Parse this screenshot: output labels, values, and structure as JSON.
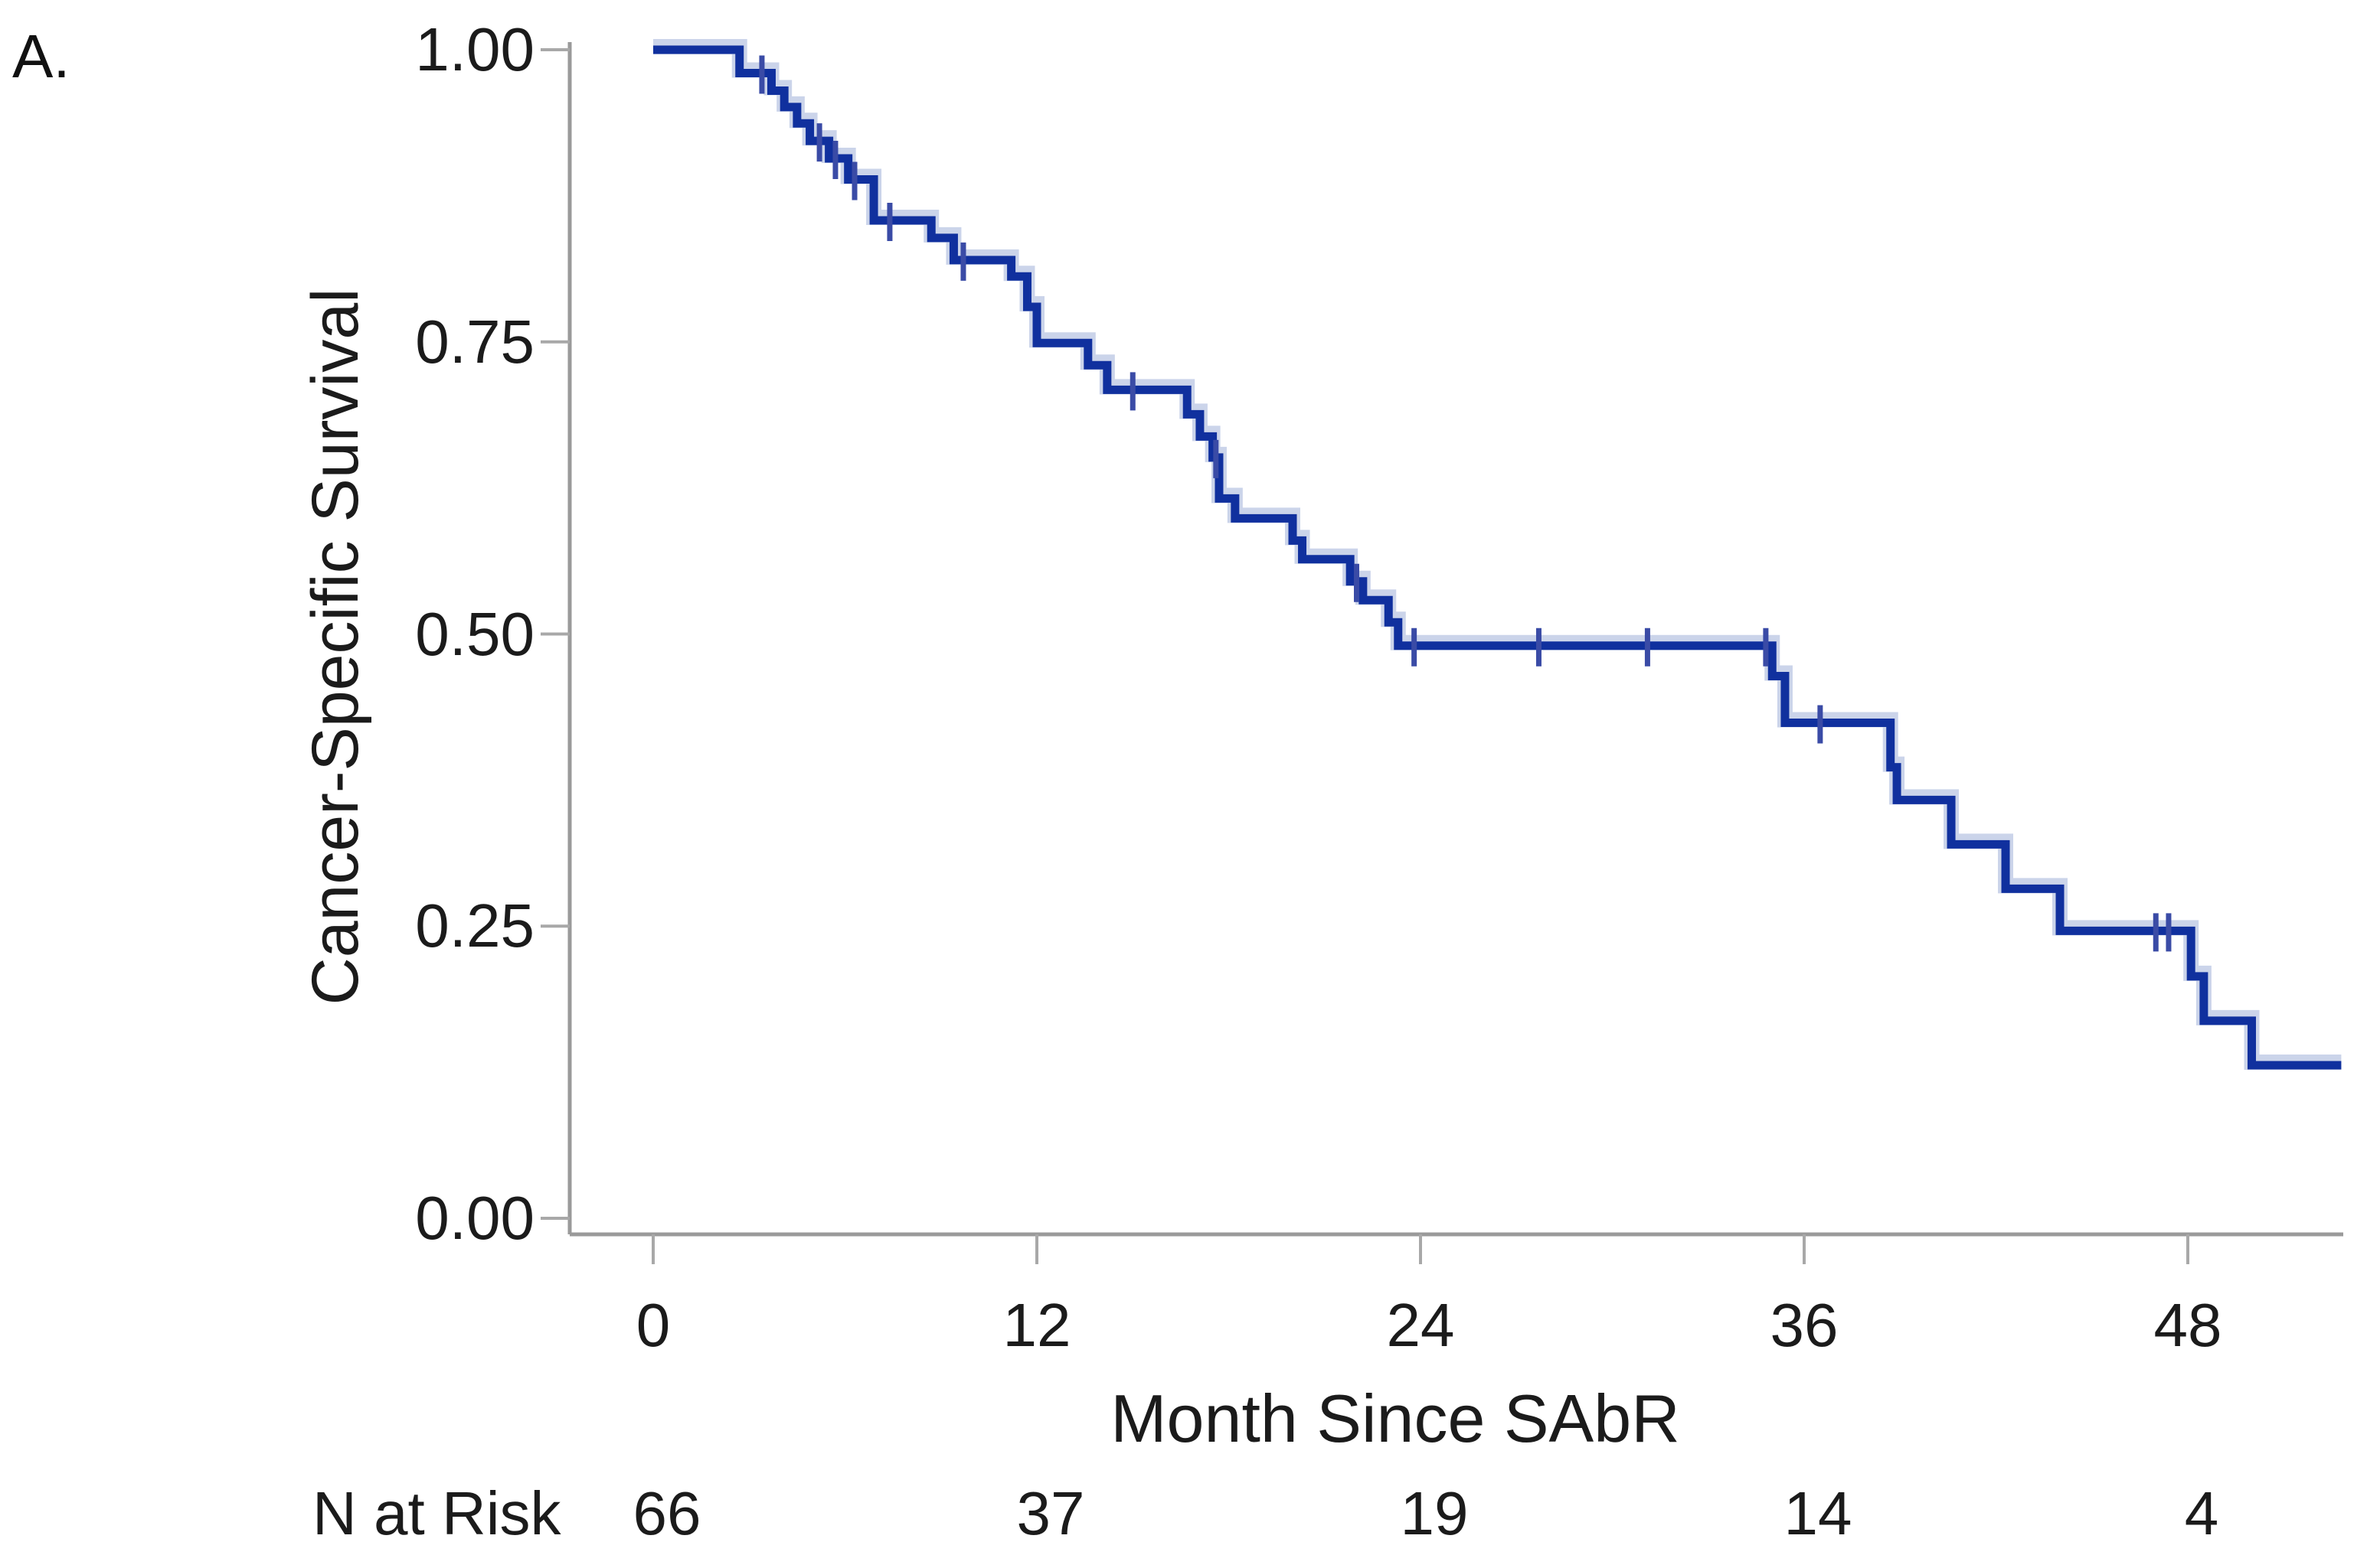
{
  "chart_data": {
    "type": "line",
    "subtype": "kaplan-meier-step-curve",
    "panel_label": "A.",
    "title": "",
    "xlabel": "Month Since SAbR",
    "ylabel": "Cancer-Specific Survival",
    "x_ticks": [
      0,
      12,
      24,
      36,
      48
    ],
    "y_ticks": [
      "1.00",
      "0.75",
      "0.50",
      "0.25",
      "0.00"
    ],
    "y_tick_values": [
      1.0,
      0.75,
      0.5,
      0.25,
      0.0
    ],
    "xlim": [
      0,
      52.9
    ],
    "ylim": [
      0.0,
      1.0
    ],
    "grid": false,
    "legend": "none",
    "colors": {
      "curve": "#10309e",
      "curve_halo": "#a8b8dc",
      "censor": "#3a4ba6",
      "axis": "#9a9a9a",
      "tick": "#a8a8a8",
      "text": "#1b1b1b",
      "background": "#ffffff"
    },
    "steps": [
      {
        "t": 0.0,
        "s": 1.0
      },
      {
        "t": 2.7,
        "s": 0.98
      },
      {
        "t": 3.7,
        "s": 0.965
      },
      {
        "t": 4.1,
        "s": 0.951
      },
      {
        "t": 4.5,
        "s": 0.937
      },
      {
        "t": 4.9,
        "s": 0.922
      },
      {
        "t": 5.5,
        "s": 0.907
      },
      {
        "t": 6.1,
        "s": 0.889
      },
      {
        "t": 6.9,
        "s": 0.854
      },
      {
        "t": 8.7,
        "s": 0.839
      },
      {
        "t": 9.4,
        "s": 0.82
      },
      {
        "t": 11.2,
        "s": 0.806
      },
      {
        "t": 11.7,
        "s": 0.78
      },
      {
        "t": 12.0,
        "s": 0.749
      },
      {
        "t": 13.6,
        "s": 0.73
      },
      {
        "t": 14.2,
        "s": 0.709
      },
      {
        "t": 16.7,
        "s": 0.688
      },
      {
        "t": 17.1,
        "s": 0.669
      },
      {
        "t": 17.5,
        "s": 0.651
      },
      {
        "t": 17.7,
        "s": 0.616
      },
      {
        "t": 18.2,
        "s": 0.599
      },
      {
        "t": 20.0,
        "s": 0.58
      },
      {
        "t": 20.3,
        "s": 0.564
      },
      {
        "t": 21.8,
        "s": 0.545
      },
      {
        "t": 22.2,
        "s": 0.529
      },
      {
        "t": 23.0,
        "s": 0.51
      },
      {
        "t": 23.3,
        "s": 0.49
      },
      {
        "t": 35.0,
        "s": 0.464
      },
      {
        "t": 35.4,
        "s": 0.424
      },
      {
        "t": 38.7,
        "s": 0.386
      },
      {
        "t": 38.9,
        "s": 0.358
      },
      {
        "t": 40.6,
        "s": 0.32
      },
      {
        "t": 42.3,
        "s": 0.282
      },
      {
        "t": 44.0,
        "s": 0.246
      },
      {
        "t": 48.1,
        "s": 0.207
      },
      {
        "t": 48.5,
        "s": 0.169
      },
      {
        "t": 50.0,
        "s": 0.131
      }
    ],
    "curve_end_t": 52.8,
    "censors": [
      {
        "t": 3.4,
        "s": 0.98
      },
      {
        "t": 5.2,
        "s": 0.922
      },
      {
        "t": 5.7,
        "s": 0.907
      },
      {
        "t": 6.3,
        "s": 0.889
      },
      {
        "t": 7.4,
        "s": 0.854
      },
      {
        "t": 9.7,
        "s": 0.82
      },
      {
        "t": 15.0,
        "s": 0.709
      },
      {
        "t": 17.6,
        "s": 0.651
      },
      {
        "t": 22.0,
        "s": 0.545
      },
      {
        "t": 23.8,
        "s": 0.49
      },
      {
        "t": 27.7,
        "s": 0.49
      },
      {
        "t": 31.1,
        "s": 0.49
      },
      {
        "t": 34.8,
        "s": 0.49
      },
      {
        "t": 36.5,
        "s": 0.424
      },
      {
        "t": 47.0,
        "s": 0.246
      },
      {
        "t": 47.4,
        "s": 0.246
      }
    ],
    "n_at_risk": {
      "label": "N at Risk",
      "times": [
        0,
        12,
        24,
        36,
        48
      ],
      "counts": [
        "66",
        "37",
        "19",
        "14",
        "4"
      ]
    }
  }
}
